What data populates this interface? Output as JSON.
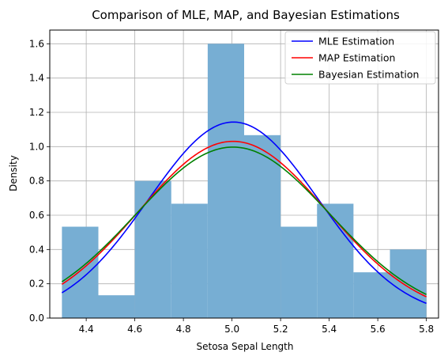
{
  "chart_data": {
    "type": "histogram-with-lines",
    "title": "Comparison of MLE, MAP, and Bayesian Estimations",
    "xlabel": "Setosa Sepal Length",
    "ylabel": "Density",
    "xlim": [
      4.25,
      5.85
    ],
    "ylim": [
      0.0,
      1.68
    ],
    "xticks": [
      "4.4",
      "4.6",
      "4.8",
      "5.0",
      "5.2",
      "5.4",
      "5.6",
      "5.8"
    ],
    "yticks": [
      "0.0",
      "0.2",
      "0.4",
      "0.6",
      "0.8",
      "1.0",
      "1.2",
      "1.4",
      "1.6"
    ],
    "grid": true,
    "legend_position": "top-right",
    "histogram": {
      "color": "#77aed3",
      "bins": [
        {
          "x0": 4.3,
          "x1": 4.45,
          "value": 0.533
        },
        {
          "x0": 4.45,
          "x1": 4.6,
          "value": 0.133
        },
        {
          "x0": 4.6,
          "x1": 4.75,
          "value": 0.8
        },
        {
          "x0": 4.75,
          "x1": 4.9,
          "value": 0.667
        },
        {
          "x0": 4.9,
          "x1": 5.05,
          "value": 1.6
        },
        {
          "x0": 5.05,
          "x1": 5.2,
          "value": 1.067
        },
        {
          "x0": 5.2,
          "x1": 5.35,
          "value": 0.533
        },
        {
          "x0": 5.35,
          "x1": 5.5,
          "value": 0.667
        },
        {
          "x0": 5.5,
          "x1": 5.65,
          "value": 0.267
        },
        {
          "x0": 5.65,
          "x1": 5.8,
          "value": 0.4
        }
      ]
    },
    "series": [
      {
        "name": "MLE Estimation",
        "color": "#0000ff",
        "kind": "normal",
        "mean": 5.006,
        "std": 0.3489
      },
      {
        "name": "MAP Estimation",
        "color": "#ff0000",
        "kind": "normal",
        "mean": 5.004,
        "std": 0.387
      },
      {
        "name": "Bayesian Estimation",
        "color": "#008000",
        "kind": "normal",
        "mean": 5.004,
        "std": 0.4
      }
    ],
    "x_range": [
      4.3,
      5.8
    ]
  }
}
